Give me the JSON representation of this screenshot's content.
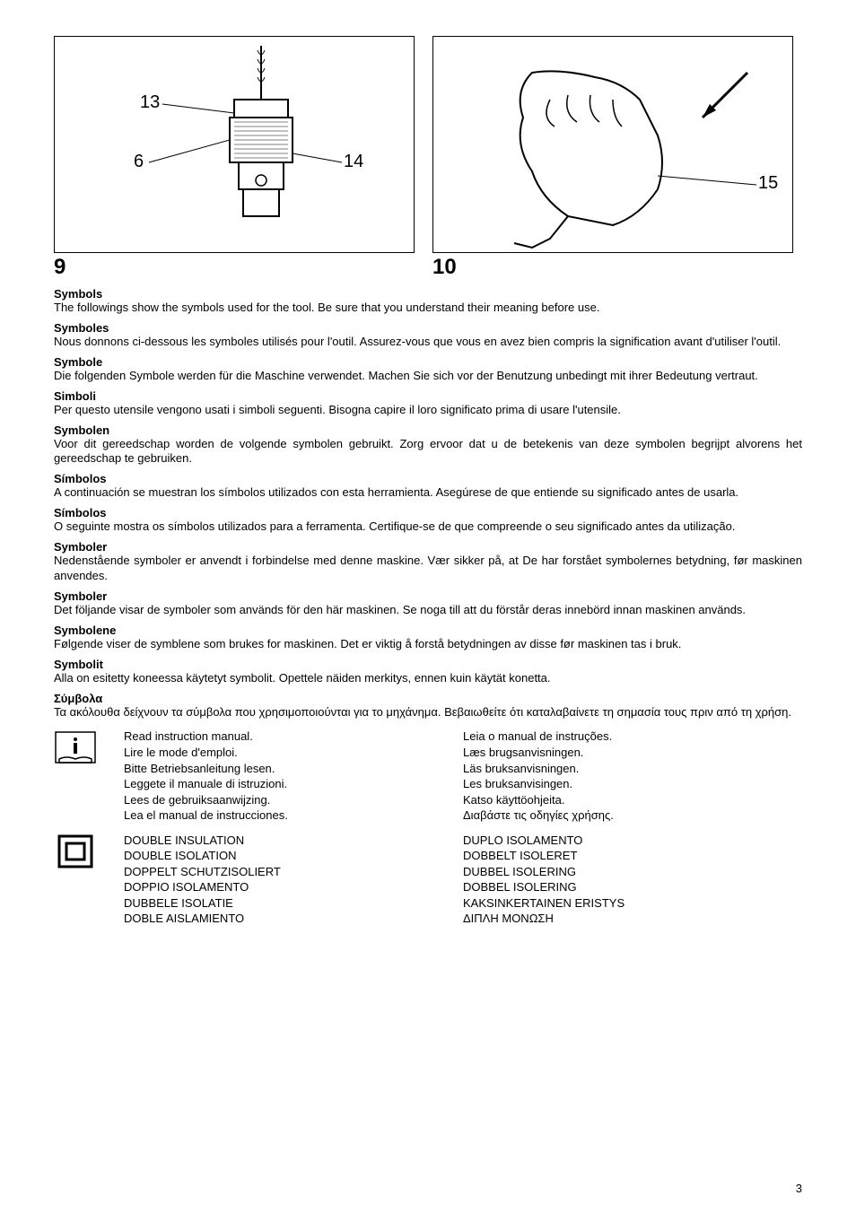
{
  "figures": {
    "fig9": {
      "number": "9",
      "callouts": {
        "c13": "13",
        "c6": "6",
        "c14": "14"
      }
    },
    "fig10": {
      "number": "10",
      "callouts": {
        "c15": "15"
      }
    }
  },
  "sections": [
    {
      "title": "Symbols",
      "text": "The followings show the symbols used for the tool. Be sure that you understand their meaning before use."
    },
    {
      "title": "Symboles",
      "text": "Nous donnons ci-dessous les symboles utilisés pour l'outil. Assurez-vous que vous en avez bien compris la signification avant d'utiliser l'outil."
    },
    {
      "title": "Symbole",
      "text": "Die folgenden Symbole werden für die Maschine verwendet. Machen Sie sich vor der Benutzung unbedingt mit ihrer Bedeutung vertraut."
    },
    {
      "title": "Simboli",
      "text": "Per questo utensile vengono usati i simboli seguenti. Bisogna capire il loro significato prima di usare l'utensile."
    },
    {
      "title": "Symbolen",
      "text": "Voor dit gereedschap worden de volgende symbolen gebruikt. Zorg ervoor dat u de betekenis van deze symbolen begrijpt alvorens het gereedschap te gebruiken."
    },
    {
      "title": "Símbolos",
      "text": "A continuación se muestran los símbolos utilizados con esta herramienta. Asegúrese de que entiende su significado antes de usarla."
    },
    {
      "title": "Símbolos",
      "text": "O seguinte mostra os símbolos utilizados para a ferramenta. Certifique-se de que compreende o seu significado antes da utilização."
    },
    {
      "title": "Symboler",
      "text": "Nedenstående symboler er anvendt i forbindelse med denne maskine. Vær sikker på, at De har forstået symbolernes betydning, før maskinen anvendes."
    },
    {
      "title": "Symboler",
      "text": "Det följande visar de symboler som används för den här maskinen. Se noga till att du förstår deras innebörd innan maskinen används."
    },
    {
      "title": "Symbolene",
      "text": "Følgende viser de symblene som brukes for maskinen. Det er viktig å forstå betydningen av disse før maskinen tas i bruk."
    },
    {
      "title": "Symbolit",
      "text": "Alla on esitetty koneessa käytetyt symbolit. Opettele näiden merkitys, ennen kuin käytät konetta."
    },
    {
      "title": "Σύμβολα",
      "text": "Τα ακόλουθα δείχνουν τα σύμβολα που χρησιμοποιούνται για το μηχάνημα. Βεβαιωθείτε ότι καταλαβαίνετε τη σημασία τους πριν από τη χρήση."
    }
  ],
  "symbolBlocks": [
    {
      "icon": "manual",
      "left": [
        "Read instruction manual.",
        "Lire le mode d'emploi.",
        "Bitte Betriebsanleitung lesen.",
        "Leggete il manuale di istruzioni.",
        "Lees de gebruiksaanwijzing.",
        "Lea el manual de instrucciones."
      ],
      "right": [
        "Leia o manual de instruções.",
        "Læs brugsanvisningen.",
        "Läs bruksanvisningen.",
        "Les bruksanvisingen.",
        "Katso käyttöohjeita.",
        "Διαβάστε τις οδηγίες χρήσης."
      ]
    },
    {
      "icon": "double-insulation",
      "left": [
        "DOUBLE INSULATION",
        "DOUBLE ISOLATION",
        "DOPPELT SCHUTZISOLIERT",
        "DOPPIO ISOLAMENTO",
        "DUBBELE ISOLATIE",
        "DOBLE AISLAMIENTO"
      ],
      "right": [
        "DUPLO ISOLAMENTO",
        "DOBBELT ISOLERET",
        "DUBBEL ISOLERING",
        "DOBBEL ISOLERING",
        "KAKSINKERTAINEN ERISTYS",
        "ΔΙΠΛΗ ΜΟΝΩΣΗ"
      ]
    }
  ],
  "pageNumber": "3"
}
